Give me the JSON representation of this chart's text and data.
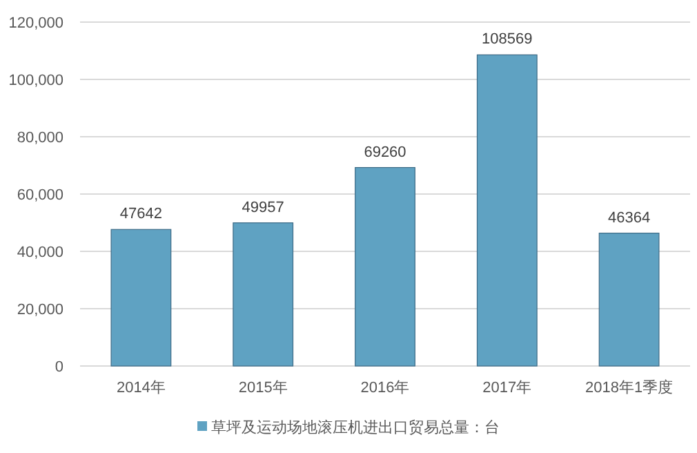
{
  "chart_data": {
    "type": "bar",
    "categories": [
      "2014年",
      "2015年",
      "2016年",
      "2017年",
      "2018年1季度"
    ],
    "series": [
      {
        "name": "草坪及运动场地滚压机进出口贸易总量：台",
        "color": "#5fa2c2",
        "values": [
          47642,
          49957,
          69260,
          108569,
          46364
        ]
      }
    ],
    "ylim": [
      0,
      120000
    ],
    "yticks": [
      0,
      {
        "value": 20000,
        "label": "20,000"
      },
      {
        "value": 40000,
        "label": "40,000"
      },
      {
        "value": 60000,
        "label": "60,000"
      },
      {
        "value": 80000,
        "label": "80,000"
      },
      {
        "value": 100000,
        "label": "100,000"
      },
      {
        "value": 120000,
        "label": "120,000"
      }
    ],
    "grid": "y",
    "legend": "bottom",
    "data_labels": true
  }
}
